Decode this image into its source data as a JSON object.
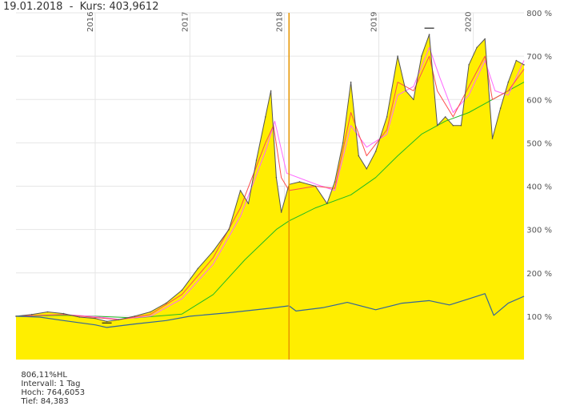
{
  "header": {
    "date": "19.01.2018",
    "separator": "-",
    "kurs_label": "Kurs:",
    "kurs_value": "403,9612"
  },
  "footer": {
    "hl": "806,11%HL",
    "interval": "Intervall: 1 Tag",
    "hoch": "Hoch: 764,6053",
    "tief": "Tief: 84,383"
  },
  "chart_data": {
    "type": "area",
    "y_unit": "%",
    "ylim": [
      0,
      800
    ],
    "y_ticks": [
      "100 %",
      "200 %",
      "300 %",
      "400 %",
      "500 %",
      "600 %",
      "700 %",
      "800 %"
    ],
    "y_tick_values": [
      100,
      200,
      300,
      400,
      500,
      600,
      700,
      800
    ],
    "x_ticks": [
      "2016",
      "2017",
      "2018",
      "2019",
      "2020"
    ],
    "x_tick_values": [
      "2016-01-01",
      "2017-01-01",
      "2018-01-01",
      "2019-01-01",
      "2020-01-01"
    ],
    "x_range": [
      "2015-03-01",
      "2020-07-15"
    ],
    "cursor_date": "2018-01-19",
    "colors": {
      "area": "#ffee00",
      "price": "#555555",
      "short_ma": "#ff4d4d",
      "medium_ma": "#ff66ff",
      "long_ma": "#22bb22",
      "benchmark": "#336699",
      "cursor": "#e69500"
    },
    "price": [
      [
        "2015-03-01",
        100
      ],
      [
        "2015-05-01",
        104
      ],
      [
        "2015-07-01",
        110
      ],
      [
        "2015-09-01",
        106
      ],
      [
        "2015-11-01",
        98
      ],
      [
        "2016-01-01",
        95
      ],
      [
        "2016-02-15",
        88
      ],
      [
        "2016-04-01",
        92
      ],
      [
        "2016-06-01",
        100
      ],
      [
        "2016-08-01",
        110
      ],
      [
        "2016-10-01",
        130
      ],
      [
        "2016-12-01",
        160
      ],
      [
        "2017-02-01",
        210
      ],
      [
        "2017-04-01",
        250
      ],
      [
        "2017-06-01",
        300
      ],
      [
        "2017-07-15",
        390
      ],
      [
        "2017-08-15",
        360
      ],
      [
        "2017-09-15",
        460
      ],
      [
        "2017-10-20",
        560
      ],
      [
        "2017-11-10",
        620
      ],
      [
        "2017-12-01",
        420
      ],
      [
        "2017-12-20",
        340
      ],
      [
        "2018-01-19",
        404
      ],
      [
        "2018-03-01",
        410
      ],
      [
        "2018-05-01",
        400
      ],
      [
        "2018-06-15",
        360
      ],
      [
        "2018-07-15",
        410
      ],
      [
        "2018-08-15",
        500
      ],
      [
        "2018-09-15",
        640
      ],
      [
        "2018-10-15",
        470
      ],
      [
        "2018-11-15",
        440
      ],
      [
        "2018-12-20",
        480
      ],
      [
        "2019-02-01",
        560
      ],
      [
        "2019-03-15",
        700
      ],
      [
        "2019-04-15",
        620
      ],
      [
        "2019-05-15",
        600
      ],
      [
        "2019-06-15",
        700
      ],
      [
        "2019-07-15",
        750
      ],
      [
        "2019-08-15",
        540
      ],
      [
        "2019-09-15",
        560
      ],
      [
        "2019-10-15",
        540
      ],
      [
        "2019-11-15",
        540
      ],
      [
        "2019-12-15",
        680
      ],
      [
        "2020-01-15",
        720
      ],
      [
        "2020-02-15",
        740
      ],
      [
        "2020-03-15",
        510
      ],
      [
        "2020-04-15",
        580
      ],
      [
        "2020-05-15",
        640
      ],
      [
        "2020-06-15",
        690
      ],
      [
        "2020-07-15",
        680
      ]
    ],
    "short_ma": [
      [
        "2015-03-01",
        100
      ],
      [
        "2015-09-01",
        104
      ],
      [
        "2016-01-01",
        97
      ],
      [
        "2016-04-01",
        92
      ],
      [
        "2016-08-01",
        104
      ],
      [
        "2016-12-01",
        150
      ],
      [
        "2017-04-01",
        235
      ],
      [
        "2017-07-15",
        350
      ],
      [
        "2017-10-20",
        500
      ],
      [
        "2017-11-20",
        540
      ],
      [
        "2017-12-20",
        420
      ],
      [
        "2018-01-19",
        390
      ],
      [
        "2018-05-01",
        400
      ],
      [
        "2018-07-15",
        395
      ],
      [
        "2018-09-15",
        570
      ],
      [
        "2018-11-15",
        470
      ],
      [
        "2019-02-01",
        530
      ],
      [
        "2019-03-15",
        640
      ],
      [
        "2019-05-15",
        620
      ],
      [
        "2019-07-15",
        700
      ],
      [
        "2019-08-15",
        620
      ],
      [
        "2019-10-15",
        560
      ],
      [
        "2019-12-15",
        630
      ],
      [
        "2020-02-15",
        700
      ],
      [
        "2020-03-15",
        600
      ],
      [
        "2020-05-15",
        620
      ],
      [
        "2020-07-15",
        670
      ]
    ],
    "medium_ma": [
      [
        "2015-03-01",
        100
      ],
      [
        "2015-09-01",
        104
      ],
      [
        "2016-01-01",
        99
      ],
      [
        "2016-04-01",
        93
      ],
      [
        "2016-08-01",
        100
      ],
      [
        "2016-12-01",
        140
      ],
      [
        "2017-04-01",
        220
      ],
      [
        "2017-07-15",
        330
      ],
      [
        "2017-10-20",
        480
      ],
      [
        "2017-11-25",
        550
      ],
      [
        "2018-01-10",
        430
      ],
      [
        "2018-05-01",
        405
      ],
      [
        "2018-07-15",
        390
      ],
      [
        "2018-09-15",
        540
      ],
      [
        "2018-11-15",
        490
      ],
      [
        "2019-02-01",
        520
      ],
      [
        "2019-03-15",
        610
      ],
      [
        "2019-05-15",
        630
      ],
      [
        "2019-07-15",
        720
      ],
      [
        "2019-08-25",
        650
      ],
      [
        "2019-10-15",
        570
      ],
      [
        "2019-12-15",
        610
      ],
      [
        "2020-02-15",
        690
      ],
      [
        "2020-03-25",
        620
      ],
      [
        "2020-05-15",
        610
      ],
      [
        "2020-07-15",
        690
      ]
    ],
    "long_ma": [
      [
        "2015-03-01",
        100
      ],
      [
        "2015-09-01",
        102
      ],
      [
        "2016-01-01",
        100
      ],
      [
        "2016-06-01",
        96
      ],
      [
        "2016-12-01",
        105
      ],
      [
        "2017-04-01",
        150
      ],
      [
        "2017-08-01",
        230
      ],
      [
        "2017-12-01",
        300
      ],
      [
        "2018-01-19",
        320
      ],
      [
        "2018-05-01",
        350
      ],
      [
        "2018-09-15",
        380
      ],
      [
        "2018-12-20",
        420
      ],
      [
        "2019-03-15",
        470
      ],
      [
        "2019-06-15",
        520
      ],
      [
        "2019-09-15",
        550
      ],
      [
        "2019-12-15",
        570
      ],
      [
        "2020-03-15",
        600
      ],
      [
        "2020-07-15",
        640
      ]
    ],
    "benchmark": [
      [
        "2015-03-01",
        100
      ],
      [
        "2015-06-01",
        98
      ],
      [
        "2015-09-01",
        90
      ],
      [
        "2016-01-01",
        80
      ],
      [
        "2016-02-15",
        74
      ],
      [
        "2016-06-01",
        82
      ],
      [
        "2016-10-01",
        90
      ],
      [
        "2017-01-01",
        100
      ],
      [
        "2017-06-01",
        108
      ],
      [
        "2017-11-01",
        118
      ],
      [
        "2018-01-19",
        124
      ],
      [
        "2018-02-15",
        112
      ],
      [
        "2018-06-01",
        120
      ],
      [
        "2018-09-01",
        132
      ],
      [
        "2018-12-20",
        115
      ],
      [
        "2019-04-01",
        130
      ],
      [
        "2019-07-15",
        136
      ],
      [
        "2019-10-01",
        126
      ],
      [
        "2019-12-15",
        140
      ],
      [
        "2020-02-15",
        152
      ],
      [
        "2020-03-20",
        102
      ],
      [
        "2020-05-15",
        130
      ],
      [
        "2020-07-15",
        146
      ]
    ],
    "markers": [
      {
        "date": "2016-02-15",
        "value": 84.383,
        "kind": "low"
      },
      {
        "date": "2019-07-15",
        "value": 764.6053,
        "kind": "high"
      }
    ]
  }
}
